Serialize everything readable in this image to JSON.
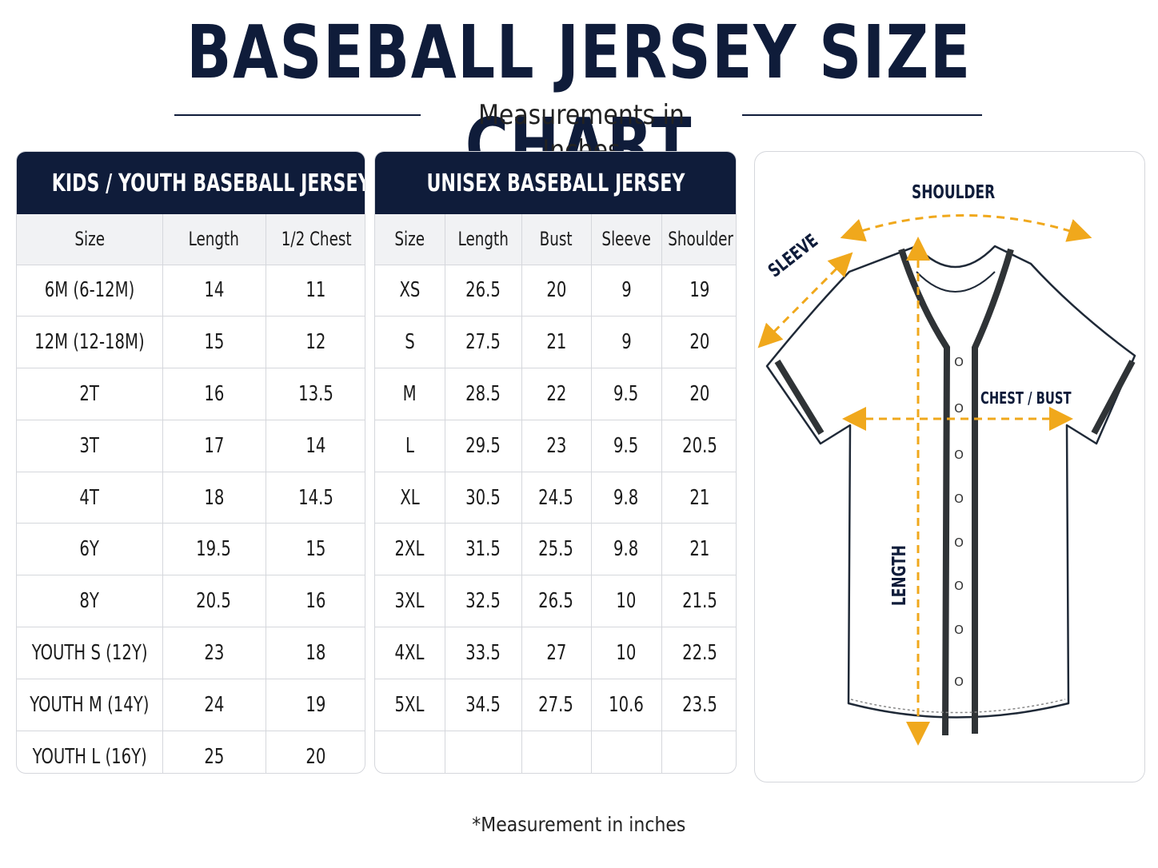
{
  "page": {
    "title": "BASEBALL JERSEY SIZE CHART",
    "subtitle": "Measurements in Inches",
    "footnote": "*Measurement in inches"
  },
  "colors": {
    "navy": "#0f1c3a",
    "arrow_orange": "#f0a81c",
    "grid": "#d5d7dc",
    "header_row_bg": "#f1f2f4"
  },
  "kids_table": {
    "title": "KIDS / YOUTH BASEBALL JERSEY",
    "columns": [
      "Size",
      "Length",
      "1/2 Chest"
    ],
    "rows": [
      [
        "6M (6-12M)",
        "14",
        "11"
      ],
      [
        "12M (12-18M)",
        "15",
        "12"
      ],
      [
        "2T",
        "16",
        "13.5"
      ],
      [
        "3T",
        "17",
        "14"
      ],
      [
        "4T",
        "18",
        "14.5"
      ],
      [
        "6Y",
        "19.5",
        "15"
      ],
      [
        "8Y",
        "20.5",
        "16"
      ],
      [
        "YOUTH S (12Y)",
        "23",
        "18"
      ],
      [
        "YOUTH M (14Y)",
        "24",
        "19"
      ],
      [
        "YOUTH L (16Y)",
        "25",
        "20"
      ]
    ]
  },
  "unisex_table": {
    "title": "UNISEX BASEBALL JERSEY",
    "columns": [
      "Size",
      "Length",
      "Bust",
      "Sleeve",
      "Shoulder"
    ],
    "rows": [
      [
        "XS",
        "26.5",
        "20",
        "9",
        "19"
      ],
      [
        "S",
        "27.5",
        "21",
        "9",
        "20"
      ],
      [
        "M",
        "28.5",
        "22",
        "9.5",
        "20"
      ],
      [
        "L",
        "29.5",
        "23",
        "9.5",
        "20.5"
      ],
      [
        "XL",
        "30.5",
        "24.5",
        "9.8",
        "21"
      ],
      [
        "2XL",
        "31.5",
        "25.5",
        "9.8",
        "21"
      ],
      [
        "3XL",
        "32.5",
        "26.5",
        "10",
        "21.5"
      ],
      [
        "4XL",
        "33.5",
        "27",
        "10",
        "22.5"
      ],
      [
        "5XL",
        "34.5",
        "27.5",
        "10.6",
        "23.5"
      ]
    ]
  },
  "diagram": {
    "labels": {
      "shoulder": "SHOULDER",
      "sleeve": "SLEEVE",
      "chest": "CHEST / BUST",
      "length": "LENGTH"
    },
    "button_glyph": "O",
    "button_count": 8
  }
}
